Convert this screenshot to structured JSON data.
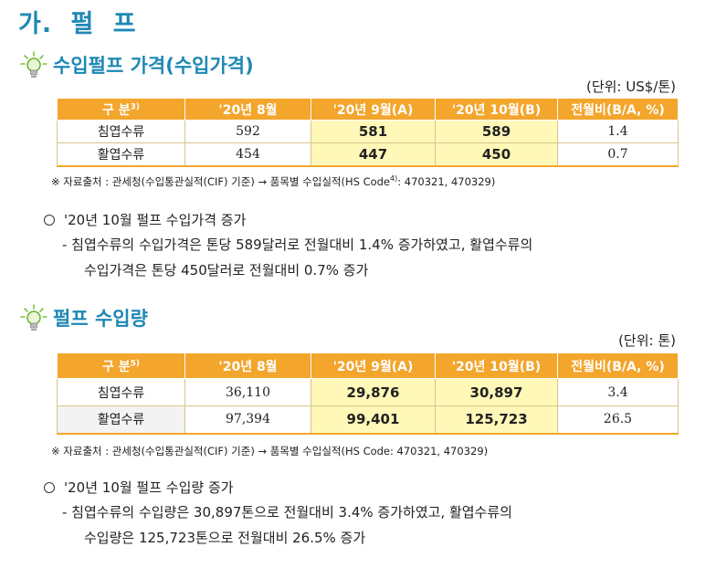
{
  "page_title": "가. 펄   프",
  "section1": {
    "title": "수입펄프 가격(수입가격)",
    "unit": "(단위: US$/톤)",
    "headers": [
      "구   분",
      "'20년 8월",
      "'20년 9월(A)",
      "'20년 10월(B)",
      "전월비(B/A, %)"
    ],
    "header_sup": "3)",
    "rows": [
      {
        "label": "침엽수류",
        "aug": "592",
        "sep": "581",
        "oct": "589",
        "ratio": "1.4"
      },
      {
        "label": "활엽수류",
        "aug": "454",
        "sep": "447",
        "oct": "450",
        "ratio": "0.7"
      }
    ],
    "source_pre": "※ 자료출처 : 관세청(수입통관실적(CIF) 기준) → 품목별 수입실적(HS Code",
    "source_sup": "4)",
    "source_post": ": 470321, 470329)",
    "bullet": "'20년 10월 펄프 수입가격 증가",
    "detail_line1": "- 침엽수류의 수입가격은 톤당 589달러로 전월대비 1.4% 증가하였고, 활엽수류의",
    "detail_line2": "수입가격은 톤당 450달러로 전월대비 0.7% 증가"
  },
  "section2": {
    "title": "펄프 수입량",
    "unit": "(단위: 톤)",
    "headers": [
      "구   분",
      "'20년 8월",
      "'20년 9월(A)",
      "'20년 10월(B)",
      "전월비(B/A, %)"
    ],
    "header_sup": "5)",
    "rows": [
      {
        "label": "침엽수류",
        "aug": "36,110",
        "sep": "29,876",
        "oct": "30,897",
        "ratio": "3.4"
      },
      {
        "label": "활엽수류",
        "aug": "97,394",
        "sep": "99,401",
        "oct": "125,723",
        "ratio": "26.5"
      }
    ],
    "source": "※ 자료출처 : 관세청(수입통관실적(CIF) 기준) → 품목별 수입실적(HS Code: 470321, 470329)",
    "bullet": "'20년 10월 펄프 수입량 증가",
    "detail_line1": "- 침엽수류의 수입량은 30,897톤으로 전월대비 3.4% 증가하였고, 활엽수류의",
    "detail_line2": "수입량은 125,723톤으로 전월대비 26.5% 증가"
  },
  "icons": {
    "section_icon": "lightbulb-icon"
  },
  "colors": {
    "title_blue": "#1e88b4",
    "header_orange": "#f3a52c",
    "highlight_yellow": "#fff8b8"
  }
}
